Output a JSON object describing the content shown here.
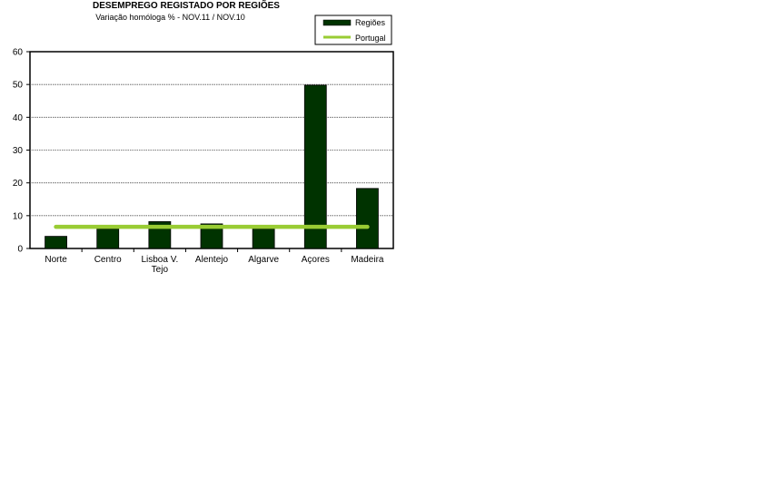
{
  "chart_data": {
    "type": "bar",
    "title": "DESEMPREGO REGISTADO POR REGIÕES",
    "subtitle": "Variação homóloga % - NOV.11 / NOV.10",
    "categories": [
      [
        "Norte"
      ],
      [
        "Centro"
      ],
      [
        "Lisboa V.",
        "Tejo"
      ],
      [
        "Alentejo"
      ],
      [
        "Algarve"
      ],
      [
        "Açores"
      ],
      [
        "Madeira"
      ]
    ],
    "series": [
      {
        "name": "Regiões",
        "type": "bar",
        "color": "#003300",
        "values": [
          3.7,
          6.0,
          8.2,
          7.5,
          6.0,
          49.8,
          18.3
        ]
      },
      {
        "name": "Portugal",
        "type": "line",
        "color": "#99cc33",
        "value": 6.6
      }
    ],
    "ylim": [
      0,
      60
    ],
    "yticks": [
      0,
      10,
      20,
      30,
      40,
      50,
      60
    ],
    "grid": true,
    "legend_position": "top-right"
  }
}
